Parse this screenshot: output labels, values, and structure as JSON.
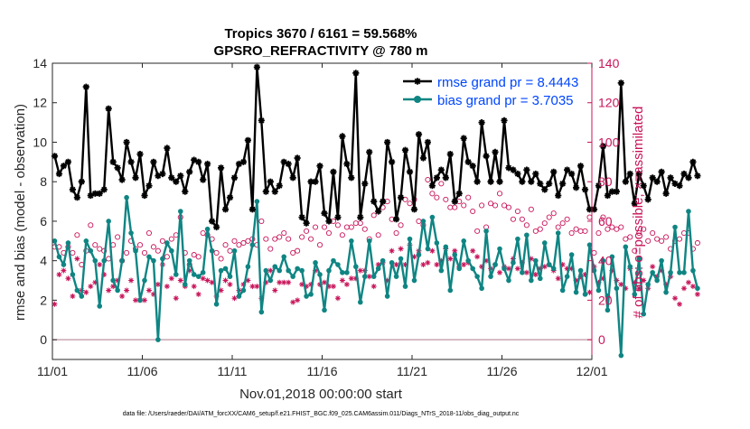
{
  "chart_data": {
    "type": "line",
    "title_line1": "Tropics 3670 / 6161 = 59.568%",
    "title_line2": "GPSRO_REFRACTIVITY @ 780 m",
    "xlabel": "Nov.01,2018 00:00:00 start",
    "ylabel_left": "rmse and bias (model - observation)",
    "ylabel_right": "# of obs: o=possible; ×=assimilated",
    "footer": "data file: /Users/raeder/DAI/ATM_forcXX/CAM6_setup/f.e21.FHIST_BGC.f09_025.CAM6assim.011/Diags_NTrS_2018-11/obs_diag_output.nc",
    "x_range_days": [
      0,
      30
    ],
    "x_ticks": [
      0,
      5,
      10,
      15,
      20,
      25,
      30
    ],
    "x_tick_labels": [
      "11/01",
      "11/06",
      "11/11",
      "11/16",
      "11/21",
      "11/26",
      "12/01"
    ],
    "ylim_left": [
      -1,
      14
    ],
    "y_ticks_left": [
      0,
      2,
      4,
      6,
      8,
      10,
      12,
      14
    ],
    "y_tick_labels_left": [
      "0",
      "2",
      "4",
      "6",
      "8",
      "10",
      "12",
      "14"
    ],
    "ylim_right": [
      -10,
      140
    ],
    "y_ticks_right": [
      0,
      20,
      40,
      60,
      80,
      100,
      120,
      140
    ],
    "y_tick_labels_right": [
      "0",
      "20",
      "40",
      "60",
      "80",
      "100",
      "120",
      "140"
    ],
    "legend": {
      "position": "top-right",
      "rmse_label": "rmse grand pr = 8.4443",
      "bias_label": "bias grand pr = 3.7035"
    },
    "zero_line": 0,
    "step_days": 0.25,
    "rmse": [
      9.3,
      8.4,
      8.8,
      9.0,
      7.6,
      7.2,
      8.0,
      12.8,
      7.3,
      7.4,
      7.4,
      7.6,
      11.7,
      9.0,
      8.7,
      8.1,
      10.0,
      9.0,
      8.2,
      9.4,
      7.3,
      7.8,
      9.0,
      8.3,
      8.4,
      9.7,
      8.2,
      8.0,
      8.3,
      7.5,
      8.5,
      9.1,
      9.0,
      8.1,
      8.9,
      6.0,
      5.7,
      8.7,
      6.6,
      7.2,
      8.2,
      8.9,
      9.0,
      10.1,
      6.6,
      13.8,
      11.1,
      7.5,
      8.0,
      7.5,
      7.8,
      9.0,
      8.9,
      8.2,
      9.2,
      6.2,
      5.9,
      8.0,
      8.0,
      8.8,
      6.4,
      6.0,
      8.5,
      6.2,
      10.3,
      8.9,
      8.2,
      13.5,
      6.2,
      7.9,
      9.5,
      7.0,
      6.5,
      7.0,
      10.0,
      9.0,
      6.1,
      7.2,
      9.6,
      8.5,
      6.6,
      10.4,
      9.2,
      10.0,
      7.8,
      8.2,
      8.6,
      8.2,
      9.4,
      7.0,
      7.4,
      10.2,
      9.0,
      8.8,
      8.0,
      11.0,
      9.3,
      8.0,
      9.5,
      8.0,
      11.1,
      8.7,
      8.6,
      8.4,
      8.0,
      8.6,
      8.0,
      8.4,
      7.9,
      7.6,
      7.9,
      8.5,
      7.3,
      7.9,
      8.6,
      8.4,
      7.7,
      8.8,
      7.6,
      6.6,
      6.6,
      7.8,
      9.8,
      7.3,
      7.5,
      7.5,
      13.0,
      8.0,
      8.4,
      6.9,
      8.4,
      7.8,
      7.1,
      8.2,
      8.0,
      8.5,
      7.4,
      8.2,
      7.9,
      7.8,
      8.4,
      8.2,
      9.0,
      8.3
    ],
    "bias": [
      5.0,
      4.2,
      3.8,
      4.9,
      3.3,
      2.5,
      2.2,
      5.0,
      4.5,
      4.0,
      1.7,
      4.0,
      6.0,
      3.0,
      2.5,
      4.0,
      7.2,
      5.4,
      4.5,
      2.0,
      3.0,
      4.2,
      4.0,
      0.0,
      4.1,
      4.9,
      4.5,
      3.3,
      6.5,
      2.8,
      4.0,
      3.3,
      3.2,
      3.4,
      5.6,
      4.5,
      1.8,
      3.5,
      3.6,
      3.2,
      4.5,
      2.2,
      2.5,
      3.7,
      4.8,
      7.0,
      1.4,
      3.5,
      3.0,
      3.7,
      3.5,
      4.2,
      3.5,
      3.2,
      3.6,
      3.5,
      2.2,
      2.3,
      3.9,
      3.3,
      1.5,
      3.5,
      4.0,
      3.8,
      3.4,
      3.4,
      5.0,
      3.7,
      1.9,
      3.2,
      5.0,
      3.2,
      3.6,
      4.0,
      2.2,
      3.9,
      3.2,
      4.1,
      2.7,
      5.1,
      3.0,
      4.3,
      6.0,
      4.6,
      6.2,
      4.9,
      3.5,
      4.7,
      2.5,
      4.3,
      3.6,
      5.0,
      4.0,
      3.6,
      3.2,
      2.6,
      5.5,
      3.2,
      3.8,
      4.6,
      3.6,
      3.0,
      3.9,
      5.1,
      3.4,
      5.3,
      3.0,
      4.0,
      3.1,
      4.9,
      3.8,
      3.6,
      5.4,
      2.5,
      3.2,
      4.3,
      2.4,
      3.5,
      2.3,
      4.8,
      3.5,
      2.5,
      4.0,
      1.5,
      4.2,
      2.6,
      -0.8,
      4.7,
      3.7,
      2.3,
      4.1,
      1.3,
      2.8,
      3.4,
      3.0,
      4.0,
      2.4,
      3.4,
      5.7,
      3.4,
      3.4,
      6.5,
      3.5,
      2.6
    ],
    "obs_possible": [
      47,
      47,
      44,
      47,
      44,
      53,
      38,
      45,
      58,
      48,
      46,
      45,
      41,
      48,
      52,
      40,
      44,
      50,
      46,
      48,
      44,
      54,
      47,
      45,
      50,
      42,
      51,
      53,
      62,
      44,
      38,
      43,
      42,
      54,
      53,
      51,
      44,
      41,
      48,
      45,
      50,
      48,
      49,
      50,
      51,
      48,
      60,
      51,
      46,
      51,
      52,
      54,
      51,
      44,
      45,
      52,
      55,
      51,
      57,
      48,
      57,
      54,
      60,
      58,
      53,
      57,
      57,
      59,
      59,
      56,
      51,
      63,
      53,
      67,
      70,
      61,
      54,
      58,
      71,
      69,
      71,
      60,
      58,
      81,
      74,
      72,
      79,
      71,
      67,
      67,
      70,
      68,
      72,
      65,
      55,
      68,
      57,
      69,
      68,
      74,
      68,
      67,
      61,
      65,
      61,
      58,
      66,
      55,
      56,
      59,
      62,
      64,
      57,
      59,
      61,
      54,
      56,
      55,
      55,
      62,
      44,
      54,
      62,
      56,
      57,
      56,
      57,
      51,
      52,
      45,
      54,
      56,
      50,
      54,
      51,
      50,
      52,
      46,
      50,
      51,
      54,
      54,
      46,
      49
    ],
    "obs_assimilated": [
      18,
      33,
      35,
      31,
      22,
      41,
      25,
      24,
      27,
      29,
      38,
      33,
      25,
      27,
      30,
      22,
      25,
      30,
      20,
      20,
      20,
      25,
      23,
      28,
      38,
      27,
      31,
      21,
      30,
      27,
      35,
      27,
      23,
      31,
      30,
      29,
      22,
      25,
      30,
      28,
      21,
      25,
      28,
      30,
      27,
      27,
      21,
      29,
      35,
      25,
      29,
      29,
      29,
      19,
      20,
      28,
      27,
      28,
      35,
      28,
      29,
      27,
      27,
      21,
      30,
      28,
      31,
      31,
      35,
      35,
      32,
      27,
      38,
      39,
      30,
      45,
      38,
      46,
      38,
      48,
      42,
      45,
      38,
      39,
      45,
      38,
      40,
      46,
      41,
      45,
      37,
      38,
      39,
      45,
      42,
      37,
      40,
      36,
      38,
      34,
      37,
      36,
      41,
      36,
      39,
      34,
      41,
      33,
      36,
      37,
      38,
      35,
      31,
      38,
      36,
      36,
      30,
      32,
      33,
      24,
      37,
      29,
      31,
      22,
      35,
      30,
      28,
      26,
      36,
      29,
      26,
      30,
      26,
      37,
      32,
      35,
      28,
      32,
      21,
      18,
      26,
      29,
      27,
      23
    ],
    "colors": {
      "rmse": "#000000",
      "bias": "#0f8583",
      "obs": "#c8145a",
      "legend_text": "#0046ff",
      "zero_line": "#c9a6b2",
      "axis": "#262626"
    }
  }
}
